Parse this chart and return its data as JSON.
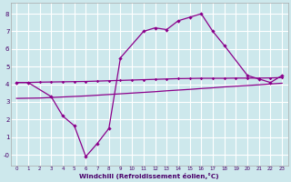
{
  "xlabel": "Windchill (Refroidissement éolien,°C)",
  "bg_color": "#cde8ec",
  "grid_color": "#ffffff",
  "line_color": "#8b008b",
  "x_ticks": [
    0,
    1,
    2,
    3,
    4,
    5,
    6,
    7,
    8,
    9,
    10,
    11,
    12,
    13,
    14,
    15,
    16,
    17,
    18,
    19,
    20,
    21,
    22,
    23
  ],
  "y_ticks": [
    0,
    1,
    2,
    3,
    4,
    5,
    6,
    7,
    8
  ],
  "y_tick_labels": [
    "-0",
    "1",
    "2",
    "3",
    "4",
    "5",
    "6",
    "7",
    "8"
  ],
  "ylim": [
    -0.6,
    8.6
  ],
  "xlim": [
    -0.5,
    23.5
  ],
  "curve1_x": [
    0,
    1,
    3,
    4,
    5,
    6,
    7,
    8,
    9,
    11,
    12,
    13,
    14,
    15,
    16,
    17,
    18,
    20,
    21,
    22,
    23
  ],
  "curve1_y": [
    4.1,
    4.1,
    3.3,
    2.2,
    1.65,
    -0.1,
    0.65,
    1.5,
    5.5,
    7.0,
    7.2,
    7.1,
    7.6,
    7.8,
    8.0,
    7.0,
    6.2,
    4.5,
    4.3,
    4.1,
    4.5
  ],
  "curve2_x": [
    0,
    1,
    2,
    3,
    4,
    5,
    6,
    7,
    8,
    9,
    10,
    11,
    12,
    13,
    14,
    15,
    16,
    17,
    18,
    19,
    20,
    21,
    22,
    23
  ],
  "curve2_y": [
    4.1,
    4.1,
    4.12,
    4.13,
    4.14,
    4.15,
    4.16,
    4.18,
    4.2,
    4.22,
    4.24,
    4.26,
    4.28,
    4.3,
    4.32,
    4.33,
    4.34,
    4.34,
    4.34,
    4.35,
    4.35,
    4.35,
    4.36,
    4.38
  ],
  "curve3_x": [
    0,
    1,
    2,
    3,
    4,
    5,
    6,
    7,
    8,
    9,
    10,
    11,
    12,
    13,
    14,
    15,
    16,
    17,
    18,
    19,
    20,
    21,
    22,
    23
  ],
  "curve3_y": [
    3.2,
    3.21,
    3.22,
    3.25,
    3.28,
    3.31,
    3.34,
    3.38,
    3.42,
    3.46,
    3.5,
    3.54,
    3.58,
    3.63,
    3.67,
    3.71,
    3.76,
    3.8,
    3.85,
    3.89,
    3.93,
    3.97,
    4.02,
    4.06
  ]
}
